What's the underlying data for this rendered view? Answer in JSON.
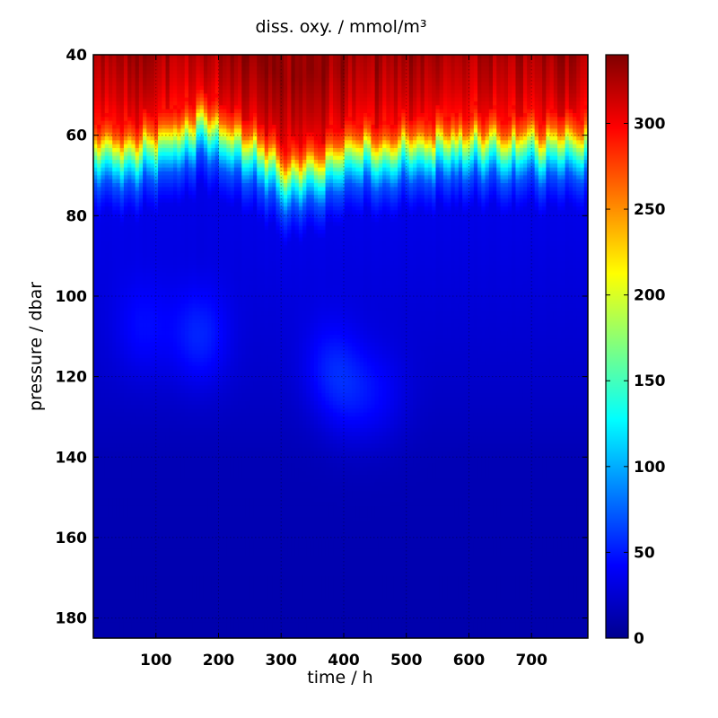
{
  "chart_data": {
    "type": "heatmap",
    "title": "diss. oxy. / mmol/m³",
    "xlabel": "time / h",
    "ylabel": "pressure / dbar",
    "xlim": [
      0,
      790
    ],
    "ylim": [
      185,
      40
    ],
    "x_ticks": [
      100,
      200,
      300,
      400,
      500,
      600,
      700
    ],
    "y_ticks": [
      40,
      60,
      80,
      100,
      120,
      140,
      160,
      180
    ],
    "grid": true,
    "colorbar": {
      "range": [
        0,
        340
      ],
      "ticks": [
        0,
        50,
        100,
        150,
        200,
        250,
        300
      ],
      "colormap": "jet"
    },
    "profile": {
      "pressure": [
        40,
        50,
        56,
        60,
        62,
        64,
        66,
        68,
        70,
        72,
        76,
        80,
        100,
        120,
        140,
        185
      ],
      "value": [
        330,
        315,
        300,
        265,
        225,
        185,
        150,
        120,
        95,
        70,
        50,
        35,
        30,
        25,
        18,
        15
      ]
    },
    "oxycline_depth": {
      "time": [
        0,
        50,
        100,
        150,
        175,
        200,
        250,
        280,
        300,
        320,
        350,
        380,
        400,
        450,
        500,
        550,
        600,
        650,
        700,
        790
      ],
      "pressure": [
        61,
        62,
        60,
        57,
        54,
        57,
        61,
        63,
        67,
        68,
        66,
        64,
        62,
        61,
        61,
        60,
        59,
        60,
        60,
        60
      ]
    },
    "blobs": [
      {
        "time": 170,
        "pressure": 110,
        "value": 45
      },
      {
        "time": 80,
        "pressure": 108,
        "value": 35
      },
      {
        "time": 380,
        "pressure": 118,
        "value": 40
      },
      {
        "time": 410,
        "pressure": 125,
        "value": 35
      },
      {
        "time": 460,
        "pressure": 125,
        "value": 32
      }
    ]
  }
}
